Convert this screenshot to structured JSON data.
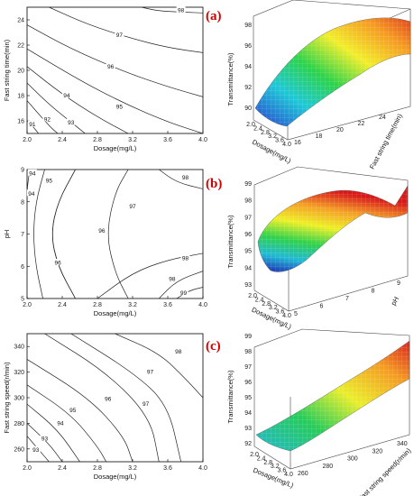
{
  "chart_data": [
    {
      "type": "contour",
      "panel": "a-contour",
      "xlabel": "Dosage(mg/L)",
      "ylabel": "Fast string time(min)",
      "xlim": [
        2.0,
        4.0
      ],
      "ylim": [
        15,
        25
      ],
      "x_ticks": [
        "2.0",
        "2.4",
        "2.8",
        "3.2",
        "3.6",
        "4.0"
      ],
      "y_ticks": [
        "16",
        "18",
        "20",
        "22",
        "24"
      ],
      "contours": [
        {
          "label": "91",
          "points": [
            [
              2.0,
              16.0
            ],
            [
              2.08,
              15.45
            ],
            [
              2.13,
              15.0
            ]
          ],
          "label_at": [
            2.06,
            15.7
          ]
        },
        {
          "label": "92",
          "points": [
            [
              2.0,
              17.6
            ],
            [
              2.15,
              16.4
            ],
            [
              2.28,
              15.4
            ],
            [
              2.35,
              15.0
            ]
          ],
          "label_at": [
            2.23,
            16.1
          ]
        },
        {
          "label": "93",
          "points": [
            [
              2.0,
              19.0
            ],
            [
              2.25,
              17.3
            ],
            [
              2.5,
              15.9
            ],
            [
              2.66,
              15.0
            ]
          ],
          "label_at": [
            2.5,
            15.85
          ]
        },
        {
          "label": "94",
          "points": [
            [
              2.0,
              20.3
            ],
            [
              2.4,
              18.1
            ],
            [
              2.8,
              16.3
            ],
            [
              3.15,
              15.0
            ]
          ],
          "label_at": [
            2.45,
            18.0
          ]
        },
        {
          "label": "95",
          "points": [
            [
              2.0,
              21.7
            ],
            [
              2.6,
              19.2
            ],
            [
              3.1,
              17.4
            ],
            [
              3.6,
              15.9
            ],
            [
              4.0,
              15.0
            ]
          ],
          "label_at": [
            3.05,
            17.1
          ]
        },
        {
          "label": "96",
          "points": [
            [
              2.0,
              23.6
            ],
            [
              2.5,
              21.7
            ],
            [
              3.1,
              19.9
            ],
            [
              3.6,
              18.7
            ],
            [
              4.0,
              17.9
            ]
          ],
          "label_at": [
            2.95,
            20.3
          ]
        },
        {
          "label": "97",
          "points": [
            [
              2.25,
              25.0
            ],
            [
              2.7,
              23.6
            ],
            [
              3.2,
              22.5
            ],
            [
              3.6,
              21.8
            ],
            [
              4.0,
              21.4
            ]
          ],
          "label_at": [
            3.05,
            22.8
          ]
        },
        {
          "label": "98",
          "points": [
            [
              3.3,
              25.0
            ],
            [
              3.5,
              24.7
            ],
            [
              3.8,
              24.6
            ],
            [
              4.0,
              24.55
            ]
          ],
          "label_at": [
            3.75,
            24.75
          ]
        }
      ]
    },
    {
      "type": "surface",
      "panel": "a-surface",
      "label": "(a)",
      "xlabel": "Dosage(mg/L)",
      "ylabel": "Fast string time(min)",
      "zlabel": "Transmittance(%)",
      "x_ticks": [
        "2.0",
        "2.4",
        "2.8",
        "3.2",
        "3.6",
        "4.0"
      ],
      "y_ticks": [
        "16",
        "18",
        "20",
        "22",
        "24"
      ],
      "z_ticks": [
        "90",
        "92",
        "94",
        "96",
        "98"
      ],
      "zlim": [
        90,
        99
      ]
    },
    {
      "type": "contour",
      "panel": "b-contour",
      "xlabel": "Dosage(mg/L)",
      "ylabel": "pH",
      "xlim": [
        2.0,
        4.0
      ],
      "ylim": [
        5,
        9
      ],
      "x_ticks": [
        "2.0",
        "2.4",
        "2.8",
        "3.2",
        "3.6",
        "4.0"
      ],
      "y_ticks": [
        "5",
        "6",
        "7",
        "8",
        "9"
      ],
      "contours": [
        {
          "label": "94",
          "points": [
            [
              2.03,
              9.0
            ],
            [
              2.01,
              8.6
            ],
            [
              2.0,
              8.3
            ]
          ],
          "label_at": [
            2.06,
            8.88
          ]
        },
        {
          "label": "94",
          "points": [
            [
              2.0,
              8.25
            ],
            [
              2.0,
              8.0
            ]
          ],
          "label_at": [
            2.05,
            8.25
          ]
        },
        {
          "label": "95",
          "points": [
            [
              2.2,
              9.0
            ],
            [
              2.1,
              8.0
            ],
            [
              2.07,
              7.0
            ],
            [
              2.1,
              6.0
            ],
            [
              2.18,
              5.0
            ]
          ],
          "label_at": [
            2.25,
            8.65
          ]
        },
        {
          "label": "96",
          "points": [
            [
              2.55,
              9.0
            ],
            [
              2.35,
              8.0
            ],
            [
              2.27,
              7.0
            ],
            [
              2.35,
              6.0
            ],
            [
              2.55,
              5.0
            ]
          ],
          "label_at": [
            2.85,
            7.1
          ]
        },
        {
          "label": "96",
          "points": [
            [
              2.55,
              9.0
            ],
            [
              2.35,
              8.0
            ],
            [
              2.27,
              7.0
            ],
            [
              2.35,
              6.0
            ],
            [
              2.55,
              5.0
            ]
          ],
          "label_at": [
            2.35,
            6.1
          ]
        },
        {
          "label": "97",
          "points": [
            [
              3.15,
              9.0
            ],
            [
              3.0,
              8.3
            ],
            [
              2.9,
              7.0
            ],
            [
              3.0,
              5.8
            ],
            [
              3.15,
              5.0
            ]
          ],
          "label_at": [
            3.2,
            7.85
          ]
        },
        {
          "label": "98",
          "points": [
            [
              3.5,
              9.0
            ],
            [
              3.7,
              8.6
            ],
            [
              4.0,
              8.4
            ]
          ],
          "label_at": [
            3.8,
            8.75
          ]
        },
        {
          "label": "98",
          "points": [
            [
              3.5,
              5.0
            ],
            [
              3.7,
              5.55
            ],
            [
              4.0,
              5.85
            ]
          ],
          "label_at": [
            3.65,
            5.6
          ]
        },
        {
          "label": "98",
          "points": [
            [
              2.8,
              5.0
            ],
            [
              3.2,
              5.8
            ],
            [
              3.6,
              6.2
            ],
            [
              4.0,
              6.4
            ]
          ],
          "label_at": [
            3.8,
            6.25
          ]
        },
        {
          "label": "99",
          "points": [
            [
              3.7,
              5.0
            ],
            [
              3.85,
              5.25
            ],
            [
              4.0,
              5.35
            ]
          ],
          "label_at": [
            3.78,
            5.17
          ]
        }
      ]
    },
    {
      "type": "surface",
      "panel": "b-surface",
      "label": "(b)",
      "xlabel": "Dosage(mg/L)",
      "ylabel": "pH",
      "zlabel": "Transmittance(%)",
      "x_ticks": [
        "2.0",
        "2.4",
        "2.8",
        "3.2",
        "3.6",
        "4.0"
      ],
      "y_ticks": [
        "5",
        "6",
        "7",
        "8",
        "9"
      ],
      "z_ticks": [
        "93",
        "94",
        "95",
        "96",
        "97",
        "98",
        "99"
      ],
      "zlim": [
        93,
        99
      ]
    },
    {
      "type": "contour",
      "panel": "c-contour",
      "xlabel": "Dosage(mg/L)",
      "ylabel": "Fast string speed(r/min)",
      "xlim": [
        2.0,
        4.0
      ],
      "ylim": [
        250,
        350
      ],
      "x_ticks": [
        "2.0",
        "2.4",
        "2.8",
        "3.2",
        "3.6",
        "4.0"
      ],
      "y_ticks": [
        "260",
        "280",
        "300",
        "320",
        "340"
      ],
      "contours": [
        {
          "label": "93",
          "points": [
            [
              2.0,
              270
            ],
            [
              2.15,
              258
            ],
            [
              2.25,
              250
            ]
          ],
          "label_at": [
            2.1,
            259
          ]
        },
        {
          "label": "93",
          "points": [
            [
              2.0,
              280
            ],
            [
              2.25,
              264
            ],
            [
              2.4,
              250
            ]
          ],
          "label_at": [
            2.2,
            268
          ]
        },
        {
          "label": "94",
          "points": [
            [
              2.0,
              295
            ],
            [
              2.35,
              275
            ],
            [
              2.6,
              250
            ]
          ],
          "label_at": [
            2.38,
            280
          ]
        },
        {
          "label": "95",
          "points": [
            [
              2.0,
              310
            ],
            [
              2.5,
              287
            ],
            [
              2.8,
              262
            ],
            [
              2.9,
              250
            ]
          ],
          "label_at": [
            2.52,
            290
          ]
        },
        {
          "label": "96",
          "points": [
            [
              2.0,
              330
            ],
            [
              2.7,
              300
            ],
            [
              3.1,
              270
            ],
            [
              3.2,
              250
            ]
          ],
          "label_at": [
            2.92,
            299
          ]
        },
        {
          "label": "97",
          "points": [
            [
              2.2,
              350
            ],
            [
              2.9,
              320
            ],
            [
              3.4,
              285
            ],
            [
              3.5,
              250
            ]
          ],
          "label_at": [
            3.4,
            320
          ]
        },
        {
          "label": "97",
          "points": [
            [
              2.5,
              350
            ],
            [
              3.2,
              320
            ],
            [
              3.6,
              295
            ],
            [
              3.75,
              250
            ]
          ],
          "label_at": [
            3.35,
            295
          ]
        },
        {
          "label": "98",
          "points": [
            [
              3.0,
              350
            ],
            [
              3.5,
              335
            ],
            [
              3.8,
              315
            ],
            [
              4.0,
              300
            ]
          ],
          "label_at": [
            3.72,
            336
          ]
        }
      ]
    },
    {
      "type": "surface",
      "panel": "c-surface",
      "label": "(c)",
      "xlabel": "Dosage(mg/L)",
      "ylabel": "Fast string speed(r/min)",
      "zlabel": "Transmittance(%)",
      "x_ticks": [
        "2.0",
        "2.4",
        "2.8",
        "3.2",
        "3.6",
        "4.0"
      ],
      "y_ticks": [
        "260",
        "280",
        "300",
        "320",
        "340"
      ],
      "z_ticks": [
        "92",
        "93",
        "94",
        "95",
        "96",
        "97",
        "98",
        "99"
      ],
      "zlim": [
        92,
        99
      ]
    }
  ]
}
